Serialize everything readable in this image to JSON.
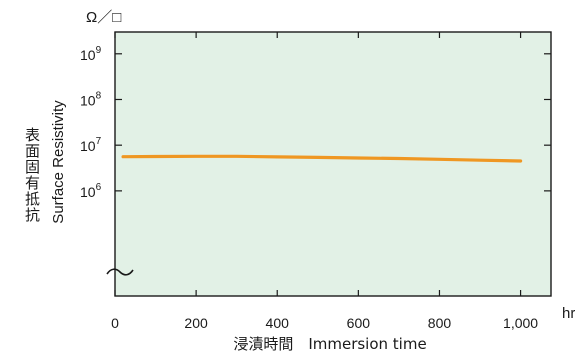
{
  "chart_data": {
    "type": "line",
    "unit_label": "Ω／□",
    "x_unit_label": "hr",
    "xlabel": "浸漬時間　Immersion time",
    "ylabel_jp": "表面固有抵抗",
    "ylabel_en": "Surface Resistivity",
    "x_ticks": [
      {
        "value": 0,
        "label": "0"
      },
      {
        "value": 200,
        "label": "200"
      },
      {
        "value": 400,
        "label": "400"
      },
      {
        "value": 600,
        "label": "600"
      },
      {
        "value": 800,
        "label": "800"
      },
      {
        "value": 1000,
        "label": "1,000"
      }
    ],
    "y_ticks": [
      {
        "exp": 6,
        "label": "10",
        "sup": "6"
      },
      {
        "exp": 7,
        "label": "10",
        "sup": "7"
      },
      {
        "exp": 8,
        "label": "10",
        "sup": "8"
      },
      {
        "exp": 9,
        "label": "10",
        "sup": "9"
      }
    ],
    "xlim": [
      0,
      1075
    ],
    "ylim": [
      5000,
      3000000000
    ],
    "y_scale": "log",
    "axis_break": "bottom of y-axis",
    "grid": false,
    "series": [
      {
        "color": "#ef9722",
        "x": [
          20,
          100,
          200,
          300,
          400,
          500,
          600,
          700,
          800,
          900,
          1000
        ],
        "y": [
          5600000,
          5650000,
          5700000,
          5700000,
          5550000,
          5400000,
          5250000,
          5100000,
          4900000,
          4700000,
          4500000
        ]
      }
    ]
  },
  "colors": {
    "plot_background": "#e2f1e6",
    "axis": "#1a1a1a"
  }
}
